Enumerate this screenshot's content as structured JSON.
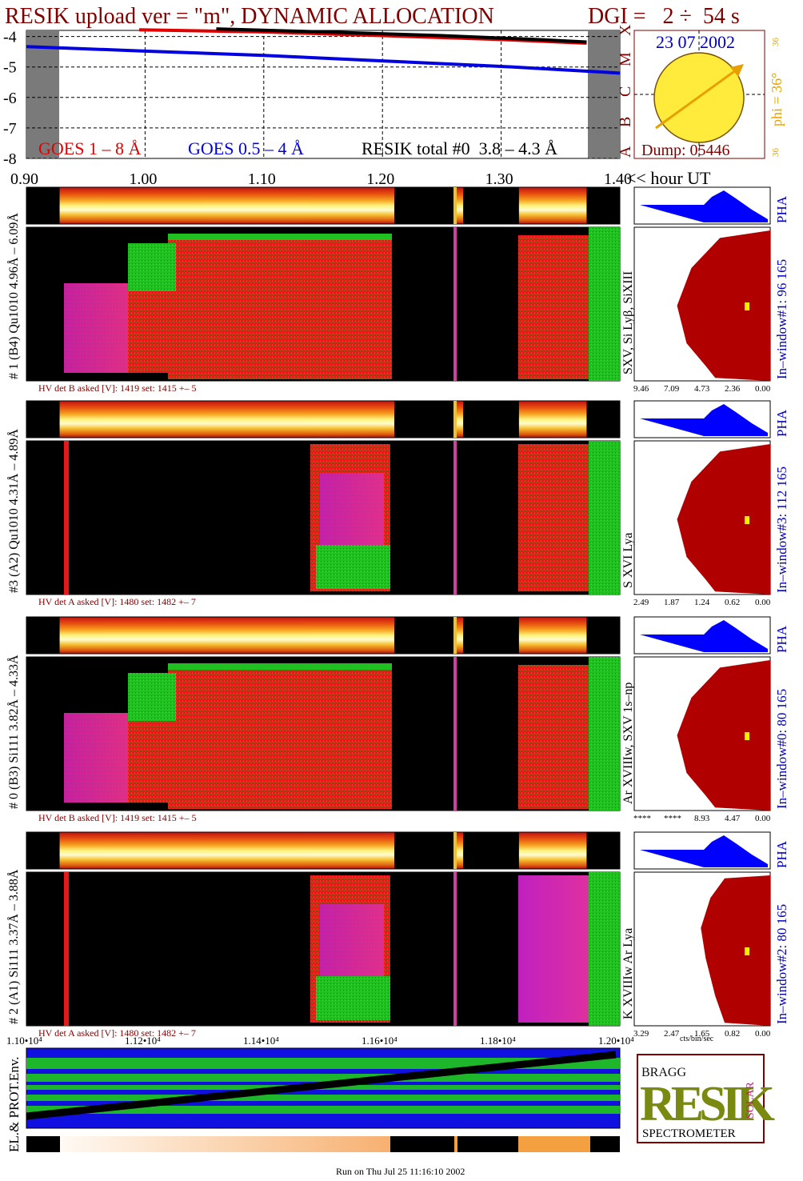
{
  "header": {
    "title": "RESIK upload ver = \"m\", DYNAMIC ALLOCATION",
    "dgi": "DGI =   2 ÷  54 s",
    "footer": "Run on Thu Jul 25 11:16:10 2002"
  },
  "colors": {
    "maroon": "#800000",
    "goes_long": "#e00000",
    "goes_short": "#0000e0",
    "resik_total": "#000000",
    "orange": "#e8a000",
    "blue_text": "#0000c0",
    "pha_blue": "#0000ff",
    "spectrum_red": "#b00000",
    "gray": "#7a7a7a"
  },
  "goes_panel": {
    "y_ticks": [
      "-4",
      "-5",
      "-6",
      "-7",
      "-8"
    ],
    "x_ticks": [
      "0.90",
      "1.00",
      "1.10",
      "1.20",
      "1.30",
      "1.40"
    ],
    "x_axis_label": "<< hour UT",
    "flare_classes": [
      "X",
      "M",
      "C",
      "B",
      "A"
    ],
    "legend_long": "GOES 1 – 8 Å",
    "legend_short": "GOES 0.5 – 4 Å",
    "legend_resik": "RESIK total #0  3.8 – 4.3 Å"
  },
  "sun_panel": {
    "date": "23 07 2002",
    "phi_label": "phi = 36°",
    "phi_top": "36",
    "phi_bottom": "36",
    "dump": "Dump: 05446"
  },
  "detectors": [
    {
      "label": "# 1 (B4) Qu1010 4.96Å – 6.09Å",
      "lines": "SXV, Si Lyβ, SiXIII",
      "window": "In–window#1:  96 165",
      "pha": "PHA",
      "hv": "HV det B asked [V]:  1419 set:  1415 +–   5",
      "scale": [
        "9.46",
        "7.09",
        "4.73",
        "2.36",
        "0.00"
      ]
    },
    {
      "label": "#3 (A2) Qu1010  4.31Å – 4.89Å",
      "lines": "S XVI Lya",
      "window": "In–window#3:  112 165",
      "pha": "PHA",
      "hv": "HV det A asked [V]:  1480 set:  1482 +–    7",
      "scale": [
        "2.49",
        "1.87",
        "1.24",
        "0.62",
        "0.00"
      ]
    },
    {
      "label": "# 0 (B3) Si111  3.82Å – 4.33Å",
      "lines": "Ar XVIIIw,  SXV 1s–np",
      "window": "In–window#0:   80 165",
      "pha": "PHA",
      "hv": "HV det B asked [V]:  1419 set:  1415 +–   5",
      "scale": [
        "****",
        "****",
        "8.93",
        "4.47",
        "0.00"
      ]
    },
    {
      "label": "# 2 (A1) Si111  3.37Å – 3.88Å",
      "lines": "K XVIIIw  Ar Lya",
      "window": "In–window#2:   80 165",
      "pha": "PHA",
      "hv": "HV det A asked [V]:  1480 set:  1482 +–   7",
      "scale": [
        "3.29",
        "2.47",
        "1.65",
        "0.82",
        "0.00"
      ]
    }
  ],
  "spectrum_units": "cts/bin/sec",
  "env_panel": {
    "label": "EL.& PROT.Env.",
    "x_ticks": [
      "1.10•10⁴",
      "1.12•10⁴",
      "1.14•10⁴",
      "1.16•10⁴",
      "1.18•10⁴",
      "1.20•10⁴"
    ]
  },
  "logo": {
    "letters": "RESIK",
    "bragg": "BRAGG",
    "solar": "SOLAR",
    "spectrometer": "SPECTROMETER"
  },
  "chart_data": [
    {
      "type": "line",
      "x_label": "hour UT",
      "xlim": [
        0.9,
        1.4
      ],
      "ylim": [
        -8,
        -3.8
      ],
      "series": [
        {
          "name": "GOES 1 – 8 Å",
          "x": [
            0.995,
            1.1,
            1.2,
            1.3,
            1.372
          ],
          "y": [
            -3.78,
            -3.85,
            -3.97,
            -4.1,
            -4.22
          ]
        },
        {
          "name": "GOES 0.5 – 4 Å",
          "x": [
            0.9,
            1.0,
            1.1,
            1.2,
            1.3,
            1.4
          ],
          "y": [
            -4.33,
            -4.48,
            -4.62,
            -4.8,
            -4.98,
            -5.2
          ]
        },
        {
          "name": "RESIK total #0  3.8 – 4.3 Å",
          "x": [
            1.06,
            1.15,
            1.25,
            1.33,
            1.372
          ],
          "y": [
            -3.75,
            -3.85,
            -3.97,
            -4.1,
            -4.18
          ]
        }
      ],
      "shaded_intervals": [
        [
          0.9,
          0.928
        ],
        [
          1.372,
          1.4
        ]
      ]
    },
    {
      "type": "heatmap",
      "x_label": "hour UT",
      "data_gaps": [
        [
          0.9,
          0.928
        ],
        [
          1.21,
          1.262
        ],
        [
          1.268,
          1.315
        ],
        [
          1.372,
          1.4
        ]
      ]
    }
  ]
}
